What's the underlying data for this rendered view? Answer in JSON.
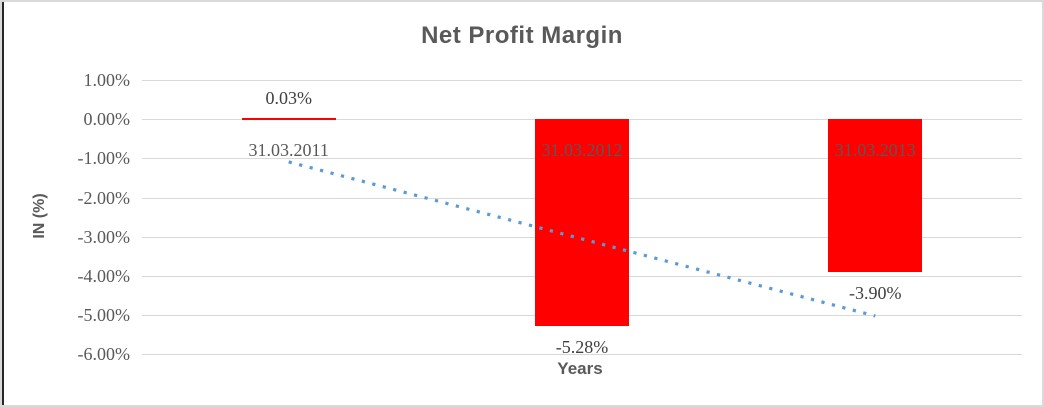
{
  "chart_data": {
    "type": "bar",
    "title": "Net Profit Margin",
    "xlabel": "Years",
    "ylabel": "IN (%)",
    "categories": [
      "31.03.2011",
      "31.03.2012",
      "31.03.2013"
    ],
    "values": [
      0.03,
      -5.28,
      -3.9
    ],
    "data_labels": [
      "0.03%",
      "-5.28%",
      "-3.90%"
    ],
    "ytick_labels": [
      "1.00%",
      "0.00%",
      "-1.00%",
      "-2.00%",
      "-3.00%",
      "-4.00%",
      "-5.00%",
      "-6.00%"
    ],
    "ylim": [
      -6,
      1
    ],
    "grid": "horizontal-only",
    "legend": "none",
    "bar_color": "#FF0000",
    "gridline_color": "#D9D9D9",
    "text_color": "#595959",
    "trendline": {
      "type": "linear",
      "style": "dotted",
      "color": "#5B9BD5",
      "start_value": -1.09,
      "end_value": -5.02
    }
  }
}
